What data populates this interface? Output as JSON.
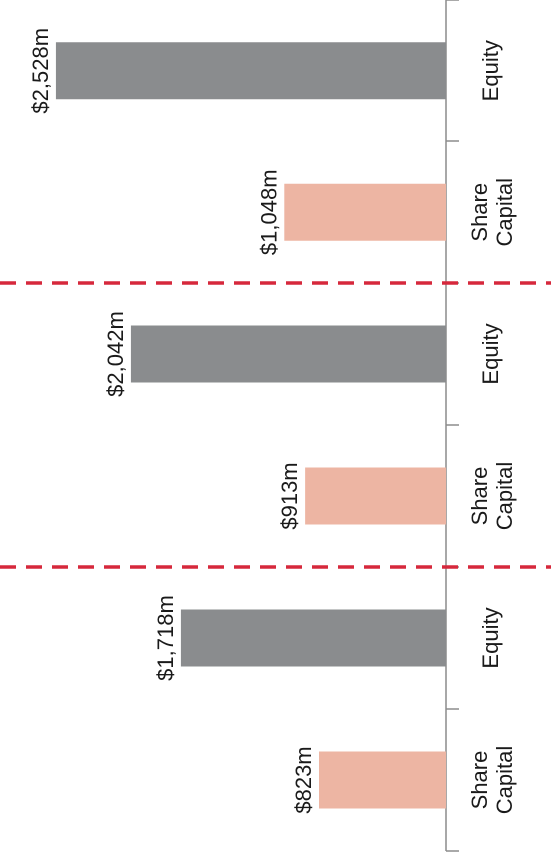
{
  "chart_data": {
    "type": "bar",
    "orientation": "rotated",
    "categories": [
      "Share Capital",
      "Equity",
      "Share Capital",
      "Equity",
      "Share Capital",
      "Equity"
    ],
    "groups": [
      {
        "items": [
          {
            "category": "Share Capital",
            "value": 823,
            "label": "$823m"
          },
          {
            "category": "Equity",
            "value": 1718,
            "label": "$1,718m"
          }
        ]
      },
      {
        "items": [
          {
            "category": "Share Capital",
            "value": 913,
            "label": "$913m"
          },
          {
            "category": "Equity",
            "value": 2042,
            "label": "$2,042m"
          }
        ]
      },
      {
        "items": [
          {
            "category": "Share Capital",
            "value": 1048,
            "label": "$1,048m"
          },
          {
            "category": "Equity",
            "value": 2528,
            "label": "$2,528m"
          }
        ]
      }
    ],
    "unit": "$m",
    "colors": {
      "Share Capital": "#EDB5A3",
      "Equity": "#8A8C8E",
      "separator": "#D6283C",
      "axis": "#8C8C8C"
    },
    "grid": false,
    "title": "",
    "xlabel": "",
    "ylabel": ""
  }
}
